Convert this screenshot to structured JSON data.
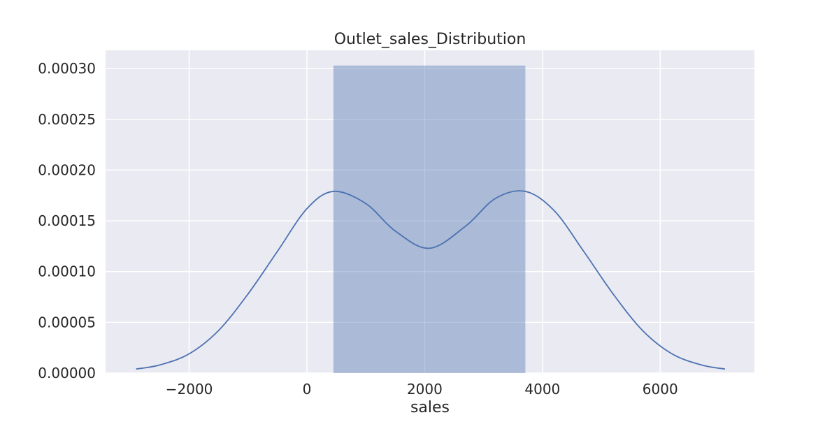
{
  "chart_data": {
    "type": "histogram+kde",
    "title": "Outlet_sales_Distribution",
    "xlabel": "sales",
    "ylabel": "",
    "xlim": [
      -3420,
      7600
    ],
    "ylim": [
      0,
      0.000318
    ],
    "grid": true,
    "x_ticks": [
      -2000,
      0,
      2000,
      4000,
      6000
    ],
    "x_tick_labels": [
      "−2000",
      "0",
      "2000",
      "4000",
      "6000"
    ],
    "y_ticks": [
      0,
      5e-05,
      0.0001,
      0.00015,
      0.0002,
      0.00025,
      0.0003
    ],
    "y_tick_labels": [
      "0.00000",
      "0.00005",
      "0.00010",
      "0.00015",
      "0.00020",
      "0.00025",
      "0.00030"
    ],
    "histogram": {
      "bins": [
        {
          "x0": 450,
          "x1": 2080,
          "density": 0.000303
        },
        {
          "x0": 2080,
          "x1": 3710,
          "density": 0.000303
        }
      ]
    },
    "kde": {
      "x": [
        -2900,
        -2500,
        -2000,
        -1500,
        -1000,
        -500,
        0,
        450,
        1000,
        1500,
        2080,
        2700,
        3200,
        3710,
        4200,
        4700,
        5200,
        5700,
        6200,
        6700,
        7100
      ],
      "y": [
        4e-06,
        8e-06,
        1.9e-05,
        4.2e-05,
        7.8e-05,
        0.00012,
        0.000162,
        0.000179,
        0.000167,
        0.00014,
        0.000123,
        0.000145,
        0.000172,
        0.000179,
        0.00016,
        0.00012,
        7.8e-05,
        4.2e-05,
        1.9e-05,
        8e-06,
        4e-06
      ]
    },
    "colors": {
      "plot_background": "#eaeaf2",
      "grid": "#ffffff",
      "bar_fill": "#4c72b0",
      "bar_opacity": 0.4,
      "kde_line": "#4c72b0",
      "text": "#262626"
    }
  }
}
